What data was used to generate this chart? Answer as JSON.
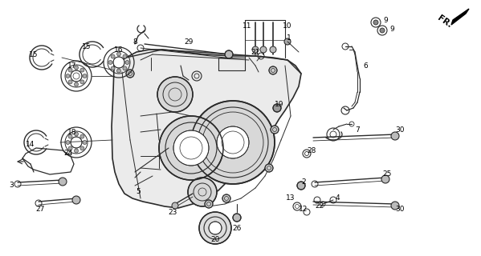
{
  "bg_color": "#ffffff",
  "line_color": "#2a2a2a",
  "text_color": "#000000",
  "figsize": [
    5.99,
    3.2
  ],
  "dpi": 100
}
